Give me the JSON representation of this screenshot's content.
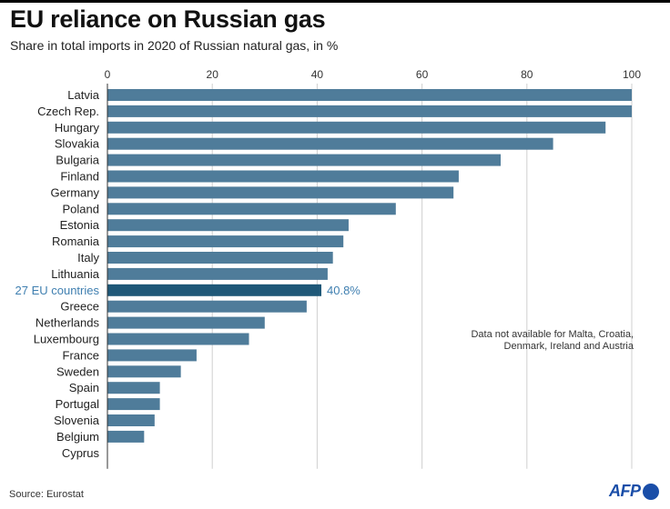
{
  "header": {
    "title": "EU reliance on Russian gas",
    "subtitle": "Share in total imports in 2020 of Russian natural gas, in %"
  },
  "note": "Data not available for Malta, Croatia, Denmark, Ireland and Austria",
  "footer": {
    "source": "Source: Eurostat",
    "logo_text": "AFP"
  },
  "colors": {
    "bar": "#4f7c9a",
    "highlight_bar": "#1f5878",
    "highlight_text": "#3f7fb0"
  },
  "chart_data": {
    "type": "bar",
    "orientation": "horizontal",
    "xlim": [
      0,
      100
    ],
    "xticks": [
      0,
      20,
      40,
      60,
      80,
      100
    ],
    "grid": true,
    "categories": [
      "Latvia",
      "Czech Rep.",
      "Hungary",
      "Slovakia",
      "Bulgaria",
      "Finland",
      "Germany",
      "Poland",
      "Estonia",
      "Romania",
      "Italy",
      "Lithuania",
      "27 EU countries",
      "Greece",
      "Netherlands",
      "Luxembourg",
      "France",
      "Sweden",
      "Spain",
      "Portugal",
      "Slovenia",
      "Belgium",
      "Cyprus"
    ],
    "values": [
      100,
      100,
      95,
      85,
      75,
      67,
      66,
      55,
      46,
      45,
      43,
      42,
      40.8,
      38,
      30,
      27,
      17,
      14,
      10,
      10,
      9,
      7,
      0
    ],
    "highlight": {
      "category": "27 EU countries",
      "label": "40.8%"
    }
  }
}
